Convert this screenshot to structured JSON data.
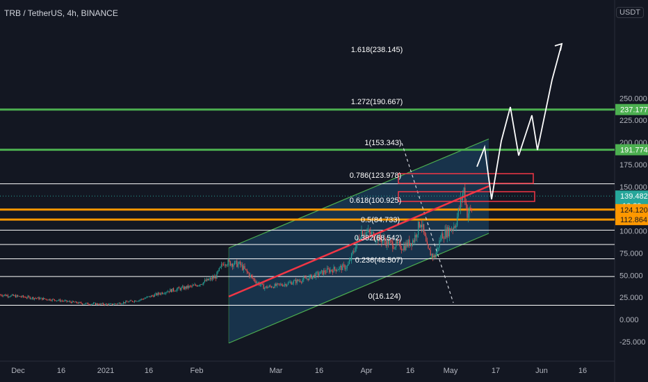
{
  "header": {
    "symbol": "TRB / TetherUS, 4h, BINANCE",
    "currency": "USDT"
  },
  "colors": {
    "background": "#131722",
    "candle_up": "#26a69a",
    "candle_down": "#ef5350",
    "green_line": "#4caf50",
    "orange_line": "#ff9800",
    "red_box": "#f23645",
    "channel_fill": "#1e4a6e",
    "channel_edge": "#4caf50",
    "white_line": "#ffffff",
    "axis_text": "#b2b5be"
  },
  "chart_data": {
    "type": "line",
    "title": "TRB / TetherUS, 4h, BINANCE",
    "ylim": [
      -35,
      275
    ],
    "y_ticks": [
      -25,
      0,
      25,
      50,
      75,
      100,
      125,
      150,
      175,
      200,
      225,
      250
    ],
    "y_tick_labels": [
      "-25.000",
      "0.000",
      "25.000",
      "50.000",
      "75.000",
      "100.000",
      "125.000",
      "150.000",
      "175.000",
      "200.000",
      "225.000",
      "250.000"
    ],
    "x_tick_labels": [
      "Dec",
      "16",
      "2021",
      "16",
      "Feb",
      "Mar",
      "16",
      "Apr",
      "16",
      "May",
      "17",
      "Jun",
      "16"
    ],
    "fib_levels": [
      {
        "label": "1.618(238.145)",
        "value": 238.145
      },
      {
        "label": "1.272(190.667)",
        "value": 190.667
      },
      {
        "label": "1(153.343)",
        "value": 153.343
      },
      {
        "label": "0.786(123.978)",
        "value": 123.978
      },
      {
        "label": "0.618(100.925)",
        "value": 100.925
      },
      {
        "label": "0.5(84.733)",
        "value": 84.733
      },
      {
        "label": "0.382(68.542)",
        "value": 68.542
      },
      {
        "label": "0.236(48.507)",
        "value": 48.507
      },
      {
        "label": "0(16.124)",
        "value": 16.124
      }
    ],
    "price_badges": [
      {
        "label": "237.177",
        "value": 237.177,
        "style": "green"
      },
      {
        "label": "191.774",
        "value": 191.774,
        "style": "green"
      },
      {
        "label": "139.482",
        "sublabel": "10:39",
        "value": 139.482,
        "style": "teal"
      },
      {
        "label": "124.120",
        "value": 124.12,
        "style": "orange"
      },
      {
        "label": "112.864",
        "value": 112.864,
        "style": "orange"
      }
    ],
    "green_levels": [
      237.177,
      191.774
    ],
    "orange_levels": [
      124.12,
      112.864
    ],
    "current_price": 139.482
  }
}
